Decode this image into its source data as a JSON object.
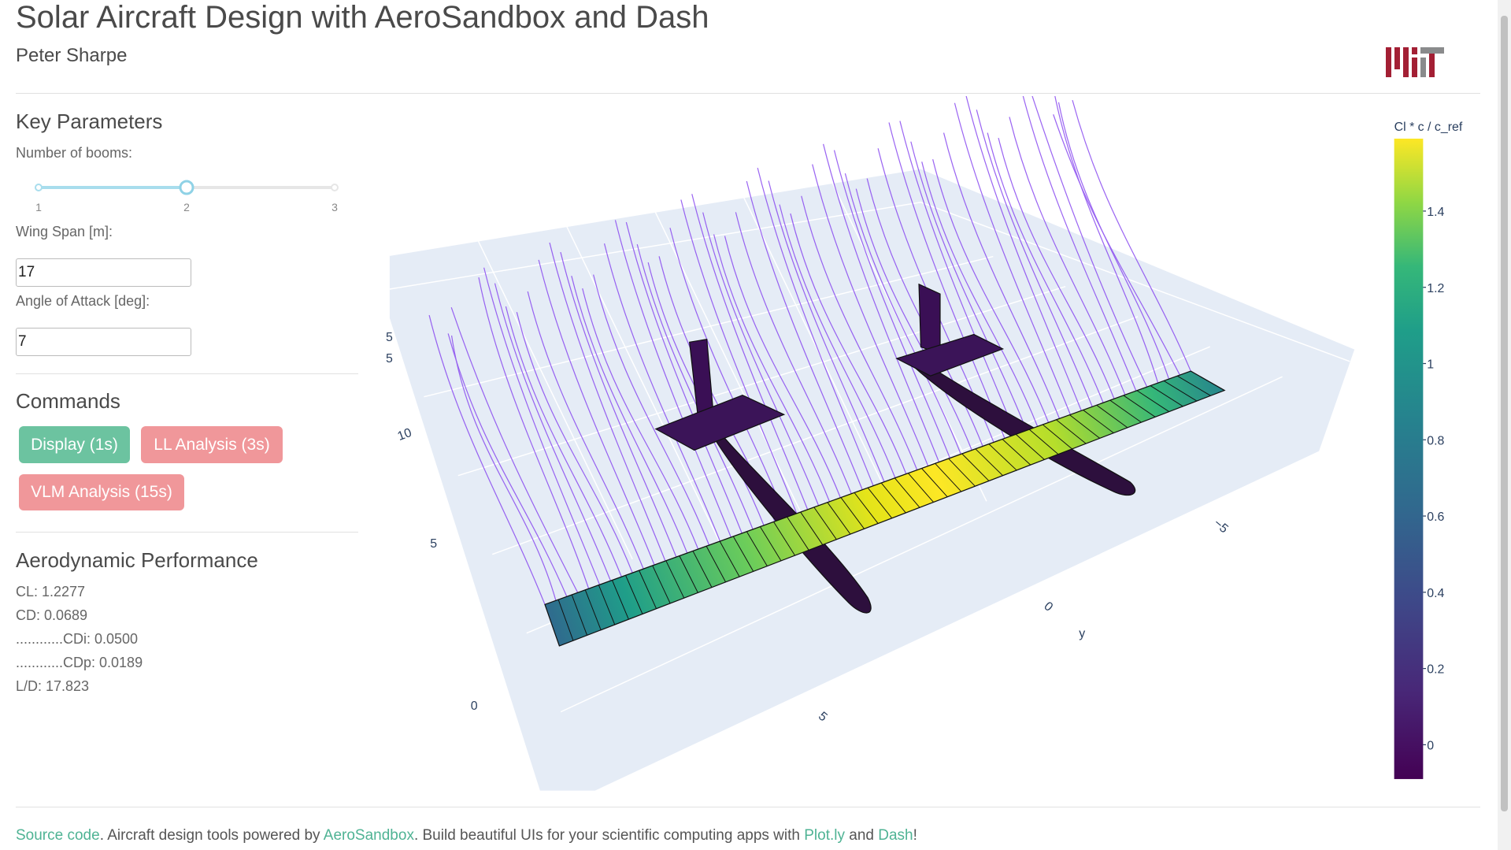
{
  "header": {
    "title": "Solar Aircraft Design with AeroSandbox and Dash",
    "author": "Peter Sharpe"
  },
  "params": {
    "heading": "Key Parameters",
    "booms_label": "Number of booms:",
    "slider_ticks": [
      "1",
      "2",
      "3"
    ],
    "span_label": "Wing Span [m]:",
    "span_value": "17",
    "aoa_label": "Angle of Attack [deg]:",
    "aoa_value": "7"
  },
  "commands": {
    "heading": "Commands",
    "buttons": [
      "Display (1s)",
      "LL Analysis (3s)",
      "VLM Analysis (15s)"
    ]
  },
  "performance": {
    "heading": "Aerodynamic Performance",
    "lines": [
      "CL: 1.2277",
      "CD: 0.0689",
      "............CDi: 0.0500",
      "............CDp: 0.0189",
      "L/D: 17.823"
    ]
  },
  "plot": {
    "colorbar_title": "Cl * c / c_ref",
    "colorbar_range": [
      -0.09,
      1.59
    ],
    "colorbar_ticks": [
      0,
      0.2,
      0.4,
      0.6,
      0.8,
      1,
      1.2,
      1.4
    ],
    "axis_labels": [
      "5",
      "5",
      "10",
      "5",
      "0",
      "5",
      "0",
      "y",
      "−5"
    ]
  },
  "footer": [
    "Source code",
    ". Aircraft design tools powered by ",
    "AeroSandbox",
    ". Build beautiful UIs for your scientific computing apps with ",
    "Plot.ly",
    " and ",
    "Dash",
    "!"
  ]
}
